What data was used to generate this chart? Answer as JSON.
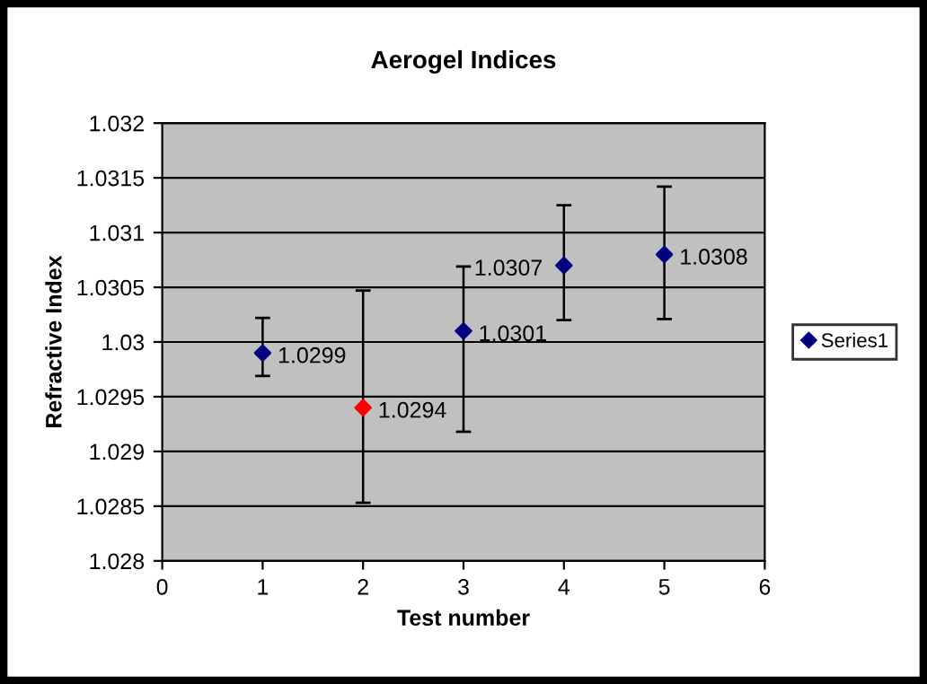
{
  "chart_data": {
    "type": "scatter",
    "title": "Aerogel Indices",
    "xlabel": "Test number",
    "ylabel": "Refractive Index",
    "x": [
      1,
      2,
      3,
      4,
      5
    ],
    "series": [
      {
        "name": "Series1",
        "color": "#000080",
        "colors": [
          "#000080",
          "#ff0000",
          "#000080",
          "#000080",
          "#000080"
        ],
        "values": [
          1.0299,
          1.0294,
          1.0301,
          1.0307,
          1.0308
        ],
        "errors": [
          [
            1.02969,
            1.03022
          ],
          [
            1.02853,
            1.03047
          ],
          [
            1.02918,
            1.03069
          ],
          [
            1.0302,
            1.03125
          ],
          [
            1.03021,
            1.03142
          ]
        ]
      }
    ],
    "xlim": [
      0,
      6
    ],
    "xticks": [
      0,
      1,
      2,
      3,
      4,
      5,
      6
    ],
    "ylim": [
      1.028,
      1.032
    ],
    "yticks": [
      1.028,
      1.0285,
      1.029,
      1.0295,
      1.03,
      1.0305,
      1.031,
      1.0315,
      1.032
    ],
    "grid": "y",
    "legend": "right",
    "marker": "diamond",
    "data_labels": true
  }
}
